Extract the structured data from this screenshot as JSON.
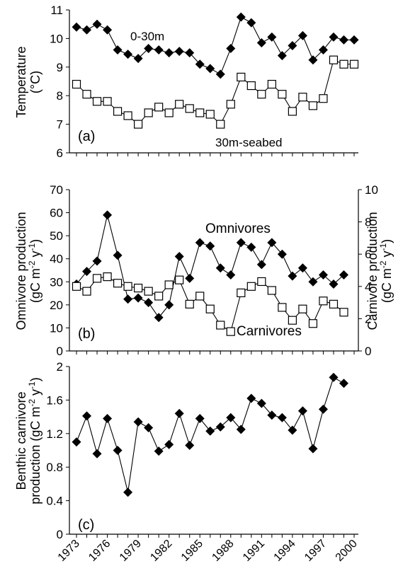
{
  "chart_data": [
    {
      "type": "line",
      "panel_label": "(a)",
      "ylabel": [
        "Temperature",
        "(°C)"
      ],
      "ylim": [
        6,
        11
      ],
      "yticks": [
        6,
        7,
        8,
        9,
        10,
        11
      ],
      "x": [
        1973,
        1974,
        1975,
        1976,
        1977,
        1978,
        1979,
        1980,
        1981,
        1982,
        1983,
        1984,
        1985,
        1986,
        1987,
        1988,
        1989,
        1990,
        1991,
        1992,
        1993,
        1994,
        1995,
        1996,
        1997,
        1998,
        1999,
        2000
      ],
      "series": [
        {
          "name": "0-30m",
          "marker": "filled-diamond",
          "values": [
            10.4,
            10.3,
            10.5,
            10.3,
            9.6,
            9.45,
            9.3,
            9.65,
            9.6,
            9.5,
            9.55,
            9.5,
            9.1,
            8.95,
            8.75,
            9.65,
            10.75,
            10.55,
            9.85,
            10.05,
            9.4,
            9.75,
            10.1,
            9.25,
            9.6,
            10.05,
            9.95,
            9.95
          ]
        },
        {
          "name": "30m-seabed",
          "marker": "open-square",
          "values": [
            8.4,
            8.05,
            7.8,
            7.8,
            7.45,
            7.3,
            7.0,
            7.4,
            7.6,
            7.4,
            7.7,
            7.55,
            7.4,
            7.35,
            7.0,
            7.7,
            8.65,
            8.35,
            8.05,
            8.4,
            8.05,
            7.45,
            7.95,
            7.65,
            7.9,
            9.25,
            9.1,
            9.1
          ]
        }
      ]
    },
    {
      "type": "line",
      "panel_label": "(b)",
      "ylabel": [
        "Omnivore production",
        "(gC m-2 y-1)"
      ],
      "ylim": [
        0,
        70
      ],
      "yticks": [
        0,
        10,
        20,
        30,
        40,
        50,
        60,
        70
      ],
      "y2label": [
        "Carnivore production",
        "(gC m-2 y-1)"
      ],
      "y2lim": [
        0,
        10
      ],
      "y2ticks": [
        0,
        2,
        4,
        6,
        8,
        10
      ],
      "x": [
        1973,
        1974,
        1975,
        1976,
        1977,
        1978,
        1979,
        1980,
        1981,
        1982,
        1983,
        1984,
        1985,
        1986,
        1987,
        1988,
        1989,
        1990,
        1991,
        1992,
        1993,
        1994,
        1995,
        1996,
        1997,
        1998,
        1999,
        2000
      ],
      "series": [
        {
          "name": "Omnivores",
          "axis": "left",
          "marker": "filled-diamond",
          "values": [
            29,
            34.5,
            39,
            59,
            41.5,
            22.5,
            23,
            21,
            14.5,
            20,
            41,
            31.5,
            47,
            45.5,
            36,
            33,
            47,
            45,
            37.5,
            47,
            42,
            32.5,
            36,
            30,
            33,
            29,
            33,
            null
          ]
        },
        {
          "name": "Carnivores",
          "axis": "right",
          "marker": "open-square",
          "values": [
            4.0,
            3.7,
            4.5,
            4.6,
            4.2,
            4.0,
            3.9,
            3.7,
            3.4,
            4.1,
            4.4,
            2.9,
            3.4,
            2.6,
            1.6,
            1.2,
            3.6,
            4.0,
            4.3,
            3.75,
            2.7,
            1.9,
            2.6,
            1.7,
            3.1,
            2.9,
            2.4,
            null
          ]
        }
      ]
    },
    {
      "type": "line",
      "panel_label": "(c)",
      "ylabel": [
        "Benthic carnivore",
        "production (gC m-2 y-1)"
      ],
      "ylim": [
        0,
        2
      ],
      "yticks": [
        "0",
        "0.4",
        "0.8",
        "1.2",
        "1.6",
        "2"
      ],
      "x": [
        1973,
        1974,
        1975,
        1976,
        1977,
        1978,
        1979,
        1980,
        1981,
        1982,
        1983,
        1984,
        1985,
        1986,
        1987,
        1988,
        1989,
        1990,
        1991,
        1992,
        1993,
        1994,
        1995,
        1996,
        1997,
        1998,
        1999,
        2000
      ],
      "xticks": [
        "1973",
        "1976",
        "1979",
        "1982",
        "1985",
        "1988",
        "1991",
        "1994",
        "1997",
        "2000"
      ],
      "series": [
        {
          "name": "Benthic carnivores",
          "marker": "filled-diamond",
          "values": [
            1.1,
            1.41,
            0.96,
            1.38,
            1.0,
            0.5,
            1.34,
            1.27,
            0.99,
            1.07,
            1.44,
            1.06,
            1.38,
            1.23,
            1.28,
            1.39,
            1.25,
            1.62,
            1.56,
            1.42,
            1.39,
            1.24,
            1.47,
            1.02,
            1.49,
            1.87,
            1.8,
            null
          ]
        }
      ]
    }
  ]
}
